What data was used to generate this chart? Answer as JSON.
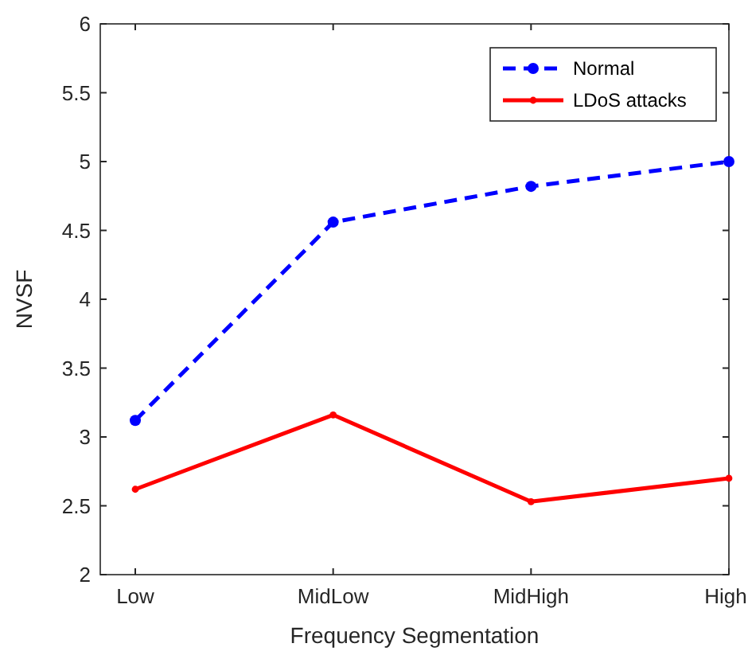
{
  "chart_data": {
    "type": "line",
    "xlabel": "Frequency Segmentation",
    "ylabel": "NVSF",
    "categories": [
      "Low",
      "MidLow",
      "MidHigh",
      "High"
    ],
    "ylim": [
      2,
      6
    ],
    "yticks": [
      2,
      2.5,
      3,
      3.5,
      4,
      4.5,
      5,
      5.5,
      6
    ],
    "grid": false,
    "legend": "top right",
    "series": [
      {
        "name": "Normal",
        "color": "#0000ff",
        "values": [
          3.12,
          4.56,
          4.82,
          5.0
        ],
        "line_style": "dashed",
        "marker": "circle"
      },
      {
        "name": "LDoS attacks",
        "color": "#ff0000",
        "values": [
          2.62,
          3.16,
          2.53,
          2.7
        ],
        "line_style": "solid",
        "marker": "circle"
      }
    ]
  }
}
